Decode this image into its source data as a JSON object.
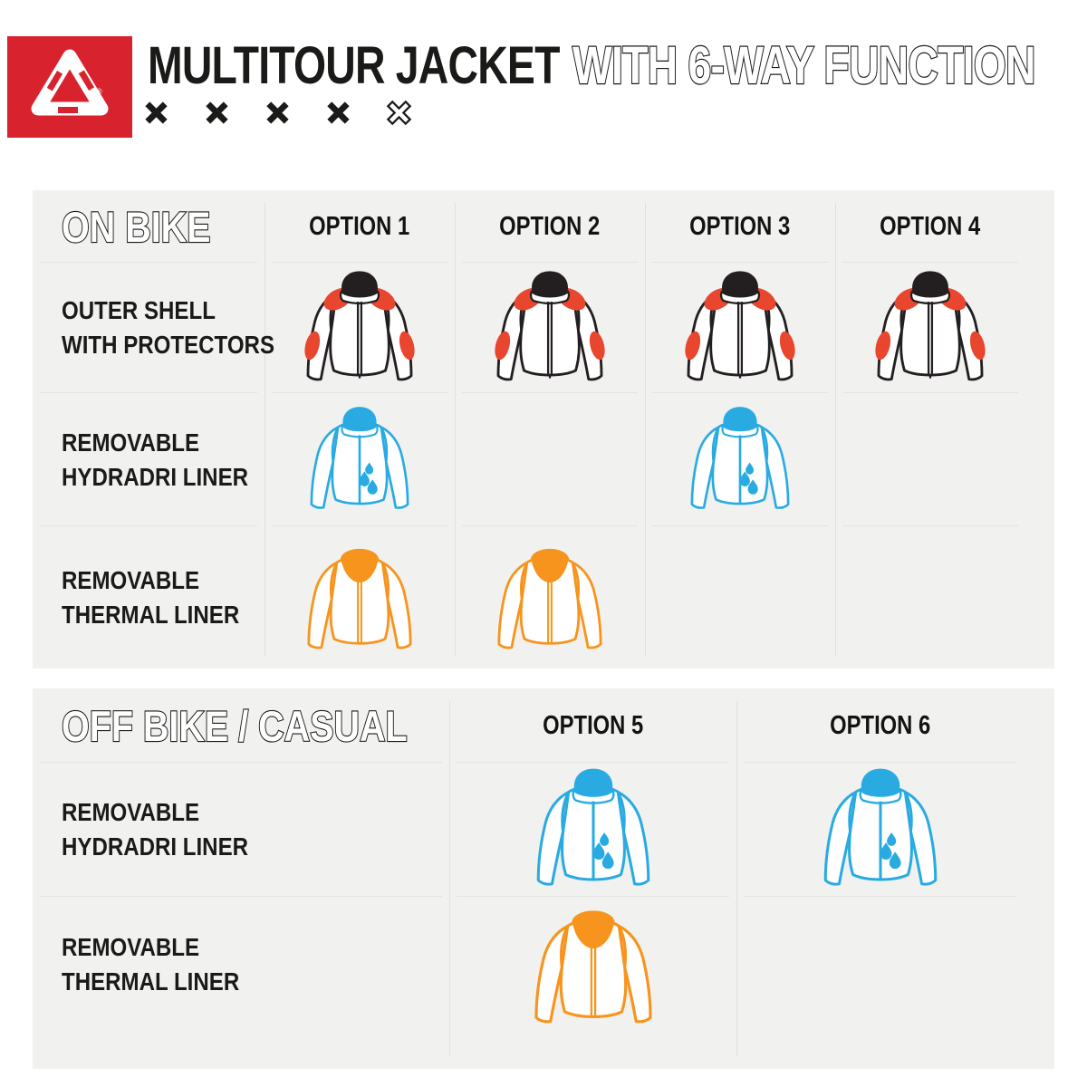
{
  "header": {
    "brand_icon": "acerbis-logo",
    "title_solid": "MULTITOUR JACKET",
    "title_outline": "WITH 6-WAY FUNCTION",
    "x_marks": {
      "solid_count": 4,
      "outline_count": 1
    }
  },
  "colors": {
    "brand_red": "#d8232e",
    "protector_red": "#e8462f",
    "hydradri_blue": "#29abe2",
    "thermal_orange": "#f7941d",
    "panel_gray": "#f1f1ef",
    "ink": "#1d1d1b"
  },
  "tables": [
    {
      "id": "on-bike",
      "heading": "ON BIKE",
      "columns": [
        "OPTION 1",
        "OPTION 2",
        "OPTION 3",
        "OPTION 4"
      ],
      "rows": [
        {
          "label_lines": [
            "OUTER SHELL",
            "WITH PROTECTORS"
          ],
          "icon": "shell",
          "cells": [
            true,
            true,
            true,
            true
          ]
        },
        {
          "label_lines": [
            "REMOVABLE",
            "HYDRADRI LINER"
          ],
          "icon": "hydradri",
          "cells": [
            true,
            false,
            true,
            false
          ]
        },
        {
          "label_lines": [
            "REMOVABLE",
            "THERMAL LINER"
          ],
          "icon": "thermal",
          "cells": [
            true,
            true,
            false,
            false
          ]
        }
      ]
    },
    {
      "id": "off-bike",
      "heading": "OFF BIKE / CASUAL",
      "columns": [
        "OPTION 5",
        "OPTION 6"
      ],
      "rows": [
        {
          "label_lines": [
            "REMOVABLE",
            "HYDRADRI LINER"
          ],
          "icon": "hydradri",
          "cells": [
            true,
            true
          ]
        },
        {
          "label_lines": [
            "REMOVABLE",
            "THERMAL LINER"
          ],
          "icon": "thermal",
          "cells": [
            true,
            false
          ]
        }
      ]
    }
  ]
}
